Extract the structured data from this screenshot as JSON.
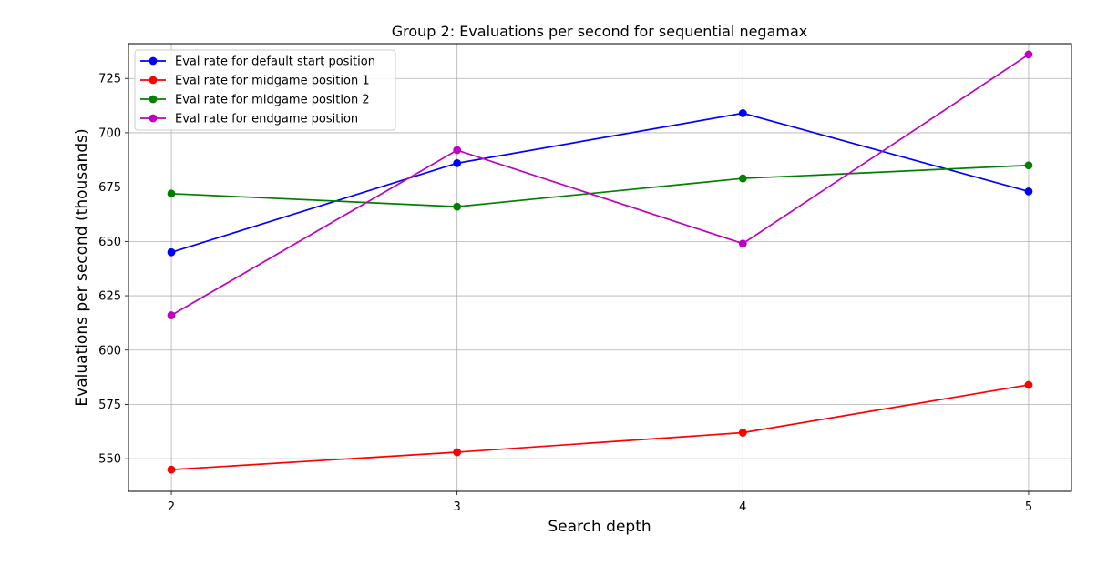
{
  "chart_data": {
    "type": "line",
    "title": "Group 2: Evaluations per second for sequential negamax",
    "xlabel": "Search depth",
    "ylabel": "Evaluations per second (thousands)",
    "x": [
      2,
      3,
      4,
      5
    ],
    "xticks": [
      "2",
      "3",
      "4",
      "5"
    ],
    "yticks": [
      550,
      575,
      600,
      625,
      650,
      675,
      700,
      725
    ],
    "xlim": [
      1.85,
      5.15
    ],
    "ylim": [
      535,
      741
    ],
    "grid": true,
    "legend_position": "top-left",
    "series": [
      {
        "name": "Eval rate for default start position",
        "color": "#0000ff",
        "values": [
          645,
          686,
          709,
          673
        ]
      },
      {
        "name": "Eval rate for midgame position 1",
        "color": "#ff0000",
        "values": [
          545,
          553,
          562,
          584
        ]
      },
      {
        "name": "Eval rate for midgame position 2",
        "color": "#008000",
        "values": [
          672,
          666,
          679,
          685
        ]
      },
      {
        "name": "Eval rate for endgame position",
        "color": "#bf00bf",
        "values": [
          616,
          692,
          649,
          736
        ]
      }
    ]
  }
}
